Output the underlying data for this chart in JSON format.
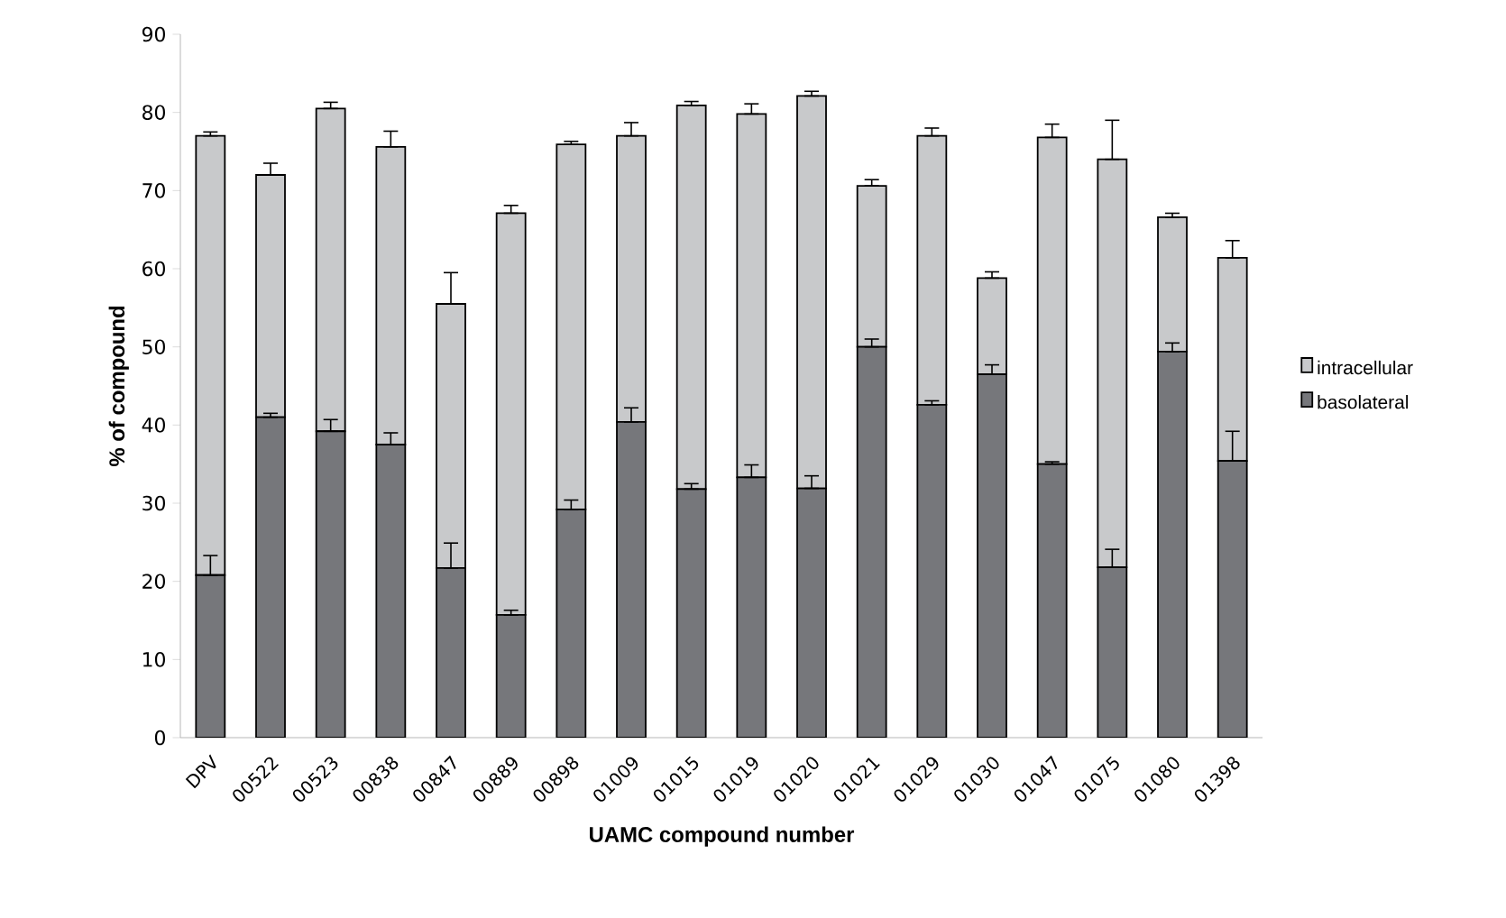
{
  "chart_data": {
    "type": "bar",
    "stacked": true,
    "xlabel": "UAMC compound number",
    "ylabel": "% of compound",
    "categories": [
      "DPV",
      "00522",
      "00523",
      "00838",
      "00847",
      "00889",
      "00898",
      "01009",
      "01015",
      "01019",
      "01020",
      "01021",
      "01029",
      "01030",
      "01047",
      "01075",
      "01080",
      "01398"
    ],
    "series": [
      {
        "name": "basolateral",
        "color": "#76777b",
        "values": [
          20.8,
          41,
          39.2,
          37.5,
          21.7,
          15.7,
          29.2,
          40.4,
          31.8,
          33.3,
          31.9,
          50,
          42.6,
          46.5,
          35,
          21.8,
          49.4,
          35.4
        ],
        "errors": [
          [
            20.8,
            23.3
          ],
          [
            41,
            41.5
          ],
          [
            39.2,
            40.7
          ],
          [
            37.5,
            39
          ],
          [
            21.7,
            24.9
          ],
          [
            15.7,
            16.3
          ],
          [
            29.2,
            30.4
          ],
          [
            40.4,
            42.2
          ],
          [
            31.8,
            32.5
          ],
          [
            33.3,
            34.9
          ],
          [
            31.9,
            33.5
          ],
          [
            50,
            51
          ],
          [
            42.6,
            43.1
          ],
          [
            46.5,
            47.7
          ],
          [
            35,
            35.3
          ],
          [
            21.8,
            24.1
          ],
          [
            49.4,
            50.5
          ],
          [
            35.4,
            39.2
          ]
        ]
      },
      {
        "name": "intracellular",
        "color": "#c8c9cb",
        "values": [
          56.2,
          31,
          41.3,
          38.1,
          33.8,
          51.4,
          46.7,
          36.6,
          49.1,
          46.5,
          50.2,
          20.6,
          34.4,
          12.3,
          41.8,
          52.2,
          17.2,
          26
        ],
        "errors": [
          [
            77,
            77.5
          ],
          [
            72,
            73.5
          ],
          [
            80.5,
            81.3
          ],
          [
            75.6,
            77.6
          ],
          [
            55.5,
            59.5
          ],
          [
            67.1,
            68.1
          ],
          [
            75.9,
            76.3
          ],
          [
            77,
            78.7
          ],
          [
            80.9,
            81.4
          ],
          [
            79.8,
            81.1
          ],
          [
            82.1,
            82.7
          ],
          [
            70.6,
            71.4
          ],
          [
            77,
            78
          ],
          [
            58.8,
            59.6
          ],
          [
            76.8,
            78.5
          ],
          [
            74,
            79
          ],
          [
            66.6,
            67.1
          ],
          [
            61.4,
            63.6
          ]
        ]
      }
    ],
    "ylim": [
      0,
      90
    ],
    "yticks": [
      0,
      10,
      20,
      30,
      40,
      50,
      60,
      70,
      80,
      90
    ],
    "grid": false,
    "legend": "right"
  }
}
